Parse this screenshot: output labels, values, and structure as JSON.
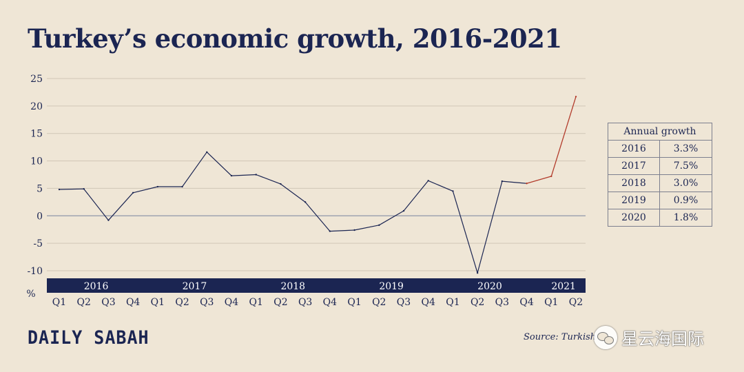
{
  "title": "Turkey’s economic growth, 2016-2021",
  "chart_data": {
    "type": "line",
    "ylabel": "%",
    "ylim": [
      -10,
      25
    ],
    "yticks": [
      -10,
      -5,
      0,
      5,
      10,
      15,
      20,
      25
    ],
    "grid": "horizontal",
    "categories": [
      "Q1",
      "Q2",
      "Q3",
      "Q4",
      "Q1",
      "Q2",
      "Q3",
      "Q4",
      "Q1",
      "Q2",
      "Q3",
      "Q4",
      "Q1",
      "Q2",
      "Q3",
      "Q4",
      "Q1",
      "Q2",
      "Q3",
      "Q4",
      "Q1",
      "Q2"
    ],
    "years": [
      {
        "label": "2016",
        "start": 0,
        "end": 3
      },
      {
        "label": "2017",
        "start": 4,
        "end": 7
      },
      {
        "label": "2018",
        "start": 8,
        "end": 11
      },
      {
        "label": "2019",
        "start": 12,
        "end": 15
      },
      {
        "label": "2020",
        "start": 16,
        "end": 19
      },
      {
        "label": "2021",
        "start": 20,
        "end": 21
      }
    ],
    "values": [
      4.8,
      4.9,
      -0.8,
      4.2,
      5.3,
      5.3,
      11.6,
      7.3,
      7.5,
      5.8,
      2.5,
      -2.8,
      -2.6,
      -1.7,
      0.9,
      6.4,
      4.5,
      -10.4,
      6.3,
      5.9,
      7.2,
      21.7
    ],
    "highlight_from_index": 19,
    "colors": {
      "line": "#1b2552",
      "highlight": "#b23b2b",
      "axis_band": "#1b2552",
      "grid": "#d0c6b6"
    }
  },
  "annual_table": {
    "header": "Annual growth",
    "rows": [
      {
        "year": "2016",
        "value": "3.3%"
      },
      {
        "year": "2017",
        "value": "7.5%"
      },
      {
        "year": "2018",
        "value": "3.0%"
      },
      {
        "year": "2019",
        "value": "0.9%"
      },
      {
        "year": "2020",
        "value": "1.8%"
      }
    ]
  },
  "logo": "DAILY SABAH",
  "source": "Source:  Turkish",
  "watermark": "星云海国际"
}
